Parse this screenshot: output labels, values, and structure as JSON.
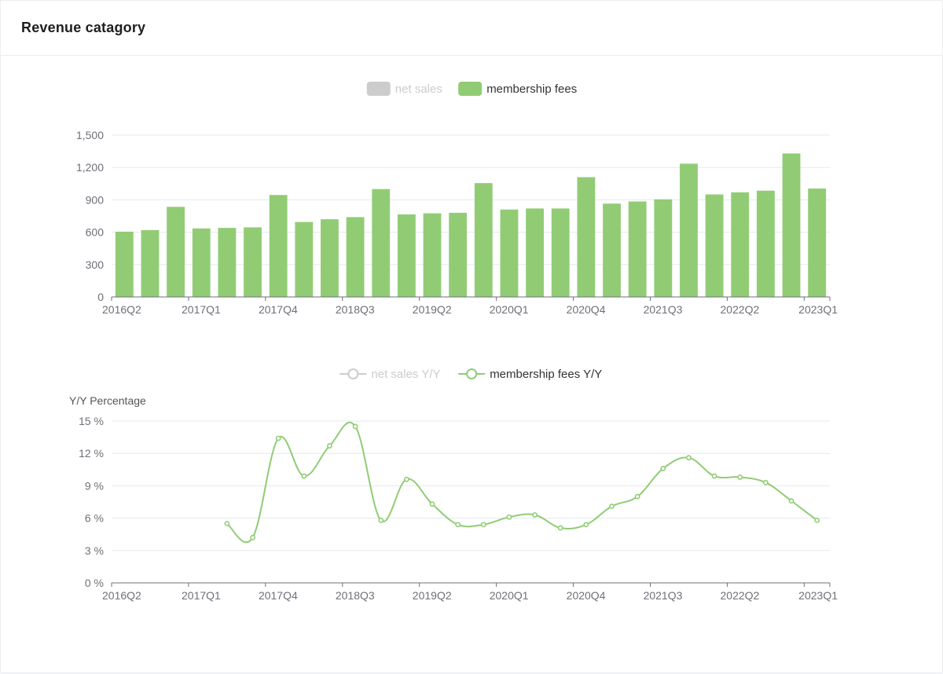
{
  "card": {
    "title": "Revenue catagory"
  },
  "colors": {
    "membership": "#91cc75",
    "inactive": "#cccccc",
    "grid": "#e6e8ee",
    "axis": "#6e7079"
  },
  "chart_data": [
    {
      "type": "bar",
      "legend": [
        {
          "name": "net sales",
          "active": false
        },
        {
          "name": "membership fees",
          "active": true
        }
      ],
      "categories": [
        "2016Q2",
        "2016Q3",
        "2016Q4",
        "2017Q1",
        "2017Q2",
        "2017Q3",
        "2017Q4",
        "2018Q1",
        "2018Q2",
        "2018Q3",
        "2018Q4",
        "2019Q1",
        "2019Q2",
        "2019Q3",
        "2019Q4",
        "2020Q1",
        "2020Q2",
        "2020Q3",
        "2020Q4",
        "2021Q1",
        "2021Q2",
        "2021Q3",
        "2021Q4",
        "2022Q1",
        "2022Q2",
        "2022Q3",
        "2022Q4",
        "2023Q1"
      ],
      "x_tick_labels": [
        "2016Q2",
        "2017Q1",
        "2017Q4",
        "2018Q3",
        "2019Q2",
        "2020Q1",
        "2020Q4",
        "2021Q3",
        "2022Q2",
        "2023Q1"
      ],
      "series": [
        {
          "name": "membership fees",
          "values": [
            605,
            620,
            835,
            635,
            640,
            645,
            945,
            695,
            720,
            740,
            1000,
            765,
            775,
            780,
            1055,
            810,
            820,
            820,
            1110,
            865,
            885,
            905,
            1235,
            950,
            970,
            985,
            1330,
            1005
          ]
        }
      ],
      "yticks": [
        "0",
        "300",
        "600",
        "900",
        "1,200",
        "1,500"
      ],
      "ylim": [
        0,
        1500
      ],
      "grid": true,
      "legend_position": "top-center"
    },
    {
      "type": "line",
      "legend": [
        {
          "name": "net sales Y/Y",
          "active": false
        },
        {
          "name": "membership fees Y/Y",
          "active": true
        }
      ],
      "ylabel": "Y/Y Percentage",
      "yticks": [
        "0 %",
        "3 %",
        "6 %",
        "9 %",
        "12 %",
        "15 %"
      ],
      "ylim": [
        0,
        15
      ],
      "x_tick_labels": [
        "2016Q2",
        "2017Q1",
        "2017Q4",
        "2018Q3",
        "2019Q2",
        "2020Q1",
        "2020Q4",
        "2021Q3",
        "2022Q2",
        "2023Q1"
      ],
      "series": [
        {
          "name": "membership fees Y/Y",
          "values": [
            null,
            null,
            null,
            null,
            5.5,
            4.2,
            13.4,
            9.9,
            12.7,
            14.5,
            5.8,
            9.6,
            7.3,
            5.4,
            5.4,
            6.1,
            6.3,
            5.1,
            5.4,
            7.1,
            8.0,
            10.6,
            11.6,
            9.9,
            9.8,
            9.3,
            7.6,
            5.8
          ]
        }
      ],
      "grid": true,
      "smooth": true,
      "legend_position": "top-center"
    }
  ]
}
